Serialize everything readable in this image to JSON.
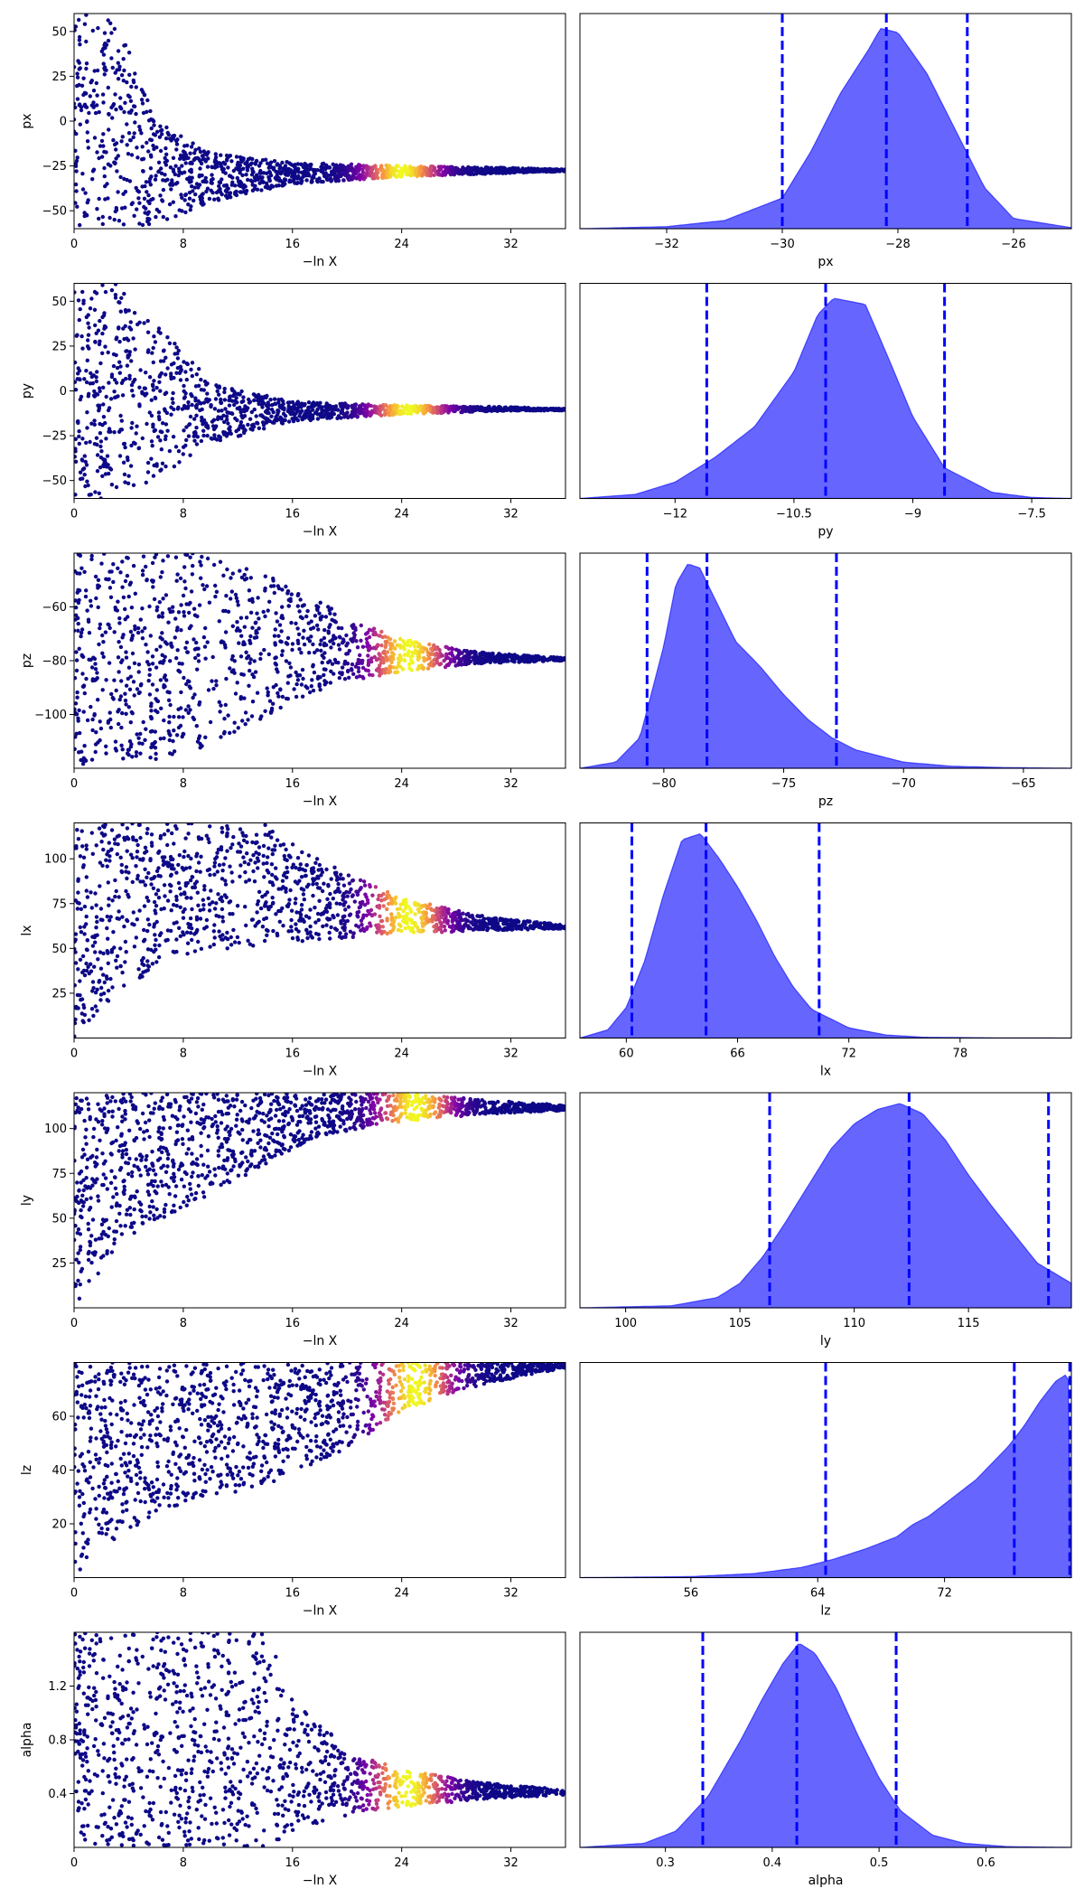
{
  "chart_data": [
    {
      "type": "scatter",
      "param": "px",
      "xlabel": "−ln X",
      "ylabel": "px",
      "xlim": [
        0,
        36
      ],
      "ylim": [
        -60,
        60
      ],
      "xticks": [
        0,
        8,
        16,
        24,
        32
      ],
      "yticks": [
        -50,
        -25,
        0,
        25,
        50
      ],
      "envelope": {
        "x": [
          0,
          3,
          6,
          10,
          16,
          24,
          32,
          36
        ],
        "upper": [
          60,
          60,
          0,
          -18,
          -23,
          -25,
          -26,
          -27
        ],
        "lower": [
          -60,
          -60,
          -58,
          -45,
          -35,
          -31,
          -29,
          -28
        ]
      },
      "colormap": "plasma",
      "color_peak_x": 24
    },
    {
      "type": "area",
      "param": "px",
      "xlabel": "px",
      "xlim": [
        -33.5,
        -25
      ],
      "xticks": [
        -32,
        -30,
        -28,
        -26
      ],
      "density": {
        "x": [
          -33.5,
          -32,
          -31,
          -30,
          -29.5,
          -29,
          -28.5,
          -28.3,
          -28,
          -27.5,
          -27,
          -26.5,
          -26,
          -25
        ],
        "y": [
          0,
          0.01,
          0.04,
          0.15,
          0.38,
          0.66,
          0.88,
          0.98,
          0.96,
          0.76,
          0.48,
          0.2,
          0.05,
          0.005
        ]
      },
      "quantiles": [
        -30.0,
        -28.2,
        -26.8
      ],
      "fill": "#0000ff",
      "line": "#0000ff"
    },
    {
      "type": "scatter",
      "param": "py",
      "xlabel": "−ln X",
      "ylabel": "py",
      "xlim": [
        0,
        36
      ],
      "ylim": [
        -60,
        60
      ],
      "xticks": [
        0,
        8,
        16,
        24,
        32
      ],
      "yticks": [
        -50,
        -25,
        0,
        25,
        50
      ],
      "envelope": {
        "x": [
          0,
          3,
          6,
          10,
          16,
          24,
          32,
          36
        ],
        "upper": [
          60,
          60,
          40,
          5,
          -6,
          -8,
          -9,
          -10
        ],
        "lower": [
          -60,
          -60,
          -50,
          -30,
          -17,
          -13,
          -11,
          -11
        ]
      },
      "colormap": "plasma",
      "color_peak_x": 24.5
    },
    {
      "type": "area",
      "param": "py",
      "xlabel": "py",
      "xlim": [
        -13.2,
        -7
      ],
      "xticks": [
        -12.0,
        -10.5,
        -9.0,
        -7.5
      ],
      "density": {
        "x": [
          -13.2,
          -12.5,
          -12,
          -11.5,
          -11,
          -10.5,
          -10.2,
          -10,
          -9.6,
          -9.3,
          -9,
          -8.6,
          -8,
          -7.5,
          -7
        ],
        "y": [
          0,
          0.02,
          0.08,
          0.2,
          0.35,
          0.62,
          0.9,
          0.98,
          0.95,
          0.68,
          0.4,
          0.15,
          0.03,
          0.005,
          0
        ]
      },
      "quantiles": [
        -11.6,
        -10.1,
        -8.6
      ],
      "fill": "#0000ff",
      "line": "#0000ff"
    },
    {
      "type": "scatter",
      "param": "pz",
      "xlabel": "−ln X",
      "ylabel": "pz",
      "xlim": [
        0,
        36
      ],
      "ylim": [
        -120,
        -40
      ],
      "xticks": [
        0,
        8,
        16,
        24,
        32
      ],
      "yticks": [
        -100,
        -80,
        -60
      ],
      "envelope": {
        "x": [
          0,
          4,
          10,
          16,
          20,
          24,
          30,
          36
        ],
        "upper": [
          -40,
          -40,
          -40,
          -52,
          -64,
          -72,
          -77,
          -79
        ],
        "lower": [
          -120,
          -120,
          -112,
          -95,
          -88,
          -84,
          -81,
          -80
        ]
      },
      "colormap": "plasma",
      "color_peak_x": 24.5
    },
    {
      "type": "area",
      "param": "pz",
      "xlabel": "pz",
      "xlim": [
        -83.5,
        -63
      ],
      "xticks": [
        -80,
        -75,
        -70,
        -65
      ],
      "density": {
        "x": [
          -83.5,
          -82,
          -81,
          -80,
          -79.5,
          -79,
          -78.5,
          -78,
          -77,
          -76,
          -75,
          -74,
          -73,
          -72,
          -70,
          -68,
          -66,
          -63
        ],
        "y": [
          0,
          0.03,
          0.15,
          0.6,
          0.9,
          1.0,
          0.98,
          0.86,
          0.62,
          0.5,
          0.36,
          0.24,
          0.15,
          0.09,
          0.03,
          0.01,
          0.004,
          0
        ]
      },
      "quantiles": [
        -80.7,
        -78.2,
        -72.8
      ],
      "fill": "#0000ff",
      "line": "#0000ff"
    },
    {
      "type": "scatter",
      "param": "lx",
      "xlabel": "−ln X",
      "ylabel": "lx",
      "xlim": [
        0,
        36
      ],
      "ylim": [
        0,
        120
      ],
      "xticks": [
        0,
        8,
        16,
        24,
        32
      ],
      "yticks": [
        25,
        50,
        75,
        100
      ],
      "envelope": {
        "x": [
          0,
          4,
          8,
          14,
          20,
          24,
          30,
          36
        ],
        "upper": [
          120,
          120,
          120,
          120,
          92,
          78,
          68,
          63
        ],
        "lower": [
          0,
          30,
          45,
          52,
          56,
          58,
          60,
          61
        ]
      },
      "colormap": "plasma",
      "color_peak_x": 24.5
    },
    {
      "type": "area",
      "param": "lx",
      "xlabel": "lx",
      "xlim": [
        57.5,
        84
      ],
      "xticks": [
        60,
        66,
        72,
        78
      ],
      "density": {
        "x": [
          57.5,
          59,
          60,
          61,
          62,
          63,
          64,
          65,
          66,
          67,
          68,
          69,
          70,
          72,
          74,
          76,
          80,
          84
        ],
        "y": [
          0,
          0.04,
          0.15,
          0.38,
          0.7,
          0.97,
          1.0,
          0.88,
          0.74,
          0.58,
          0.4,
          0.25,
          0.14,
          0.05,
          0.015,
          0.004,
          0.001,
          0
        ]
      },
      "quantiles": [
        60.3,
        64.3,
        70.4
      ],
      "fill": "#0000ff",
      "line": "#0000ff"
    },
    {
      "type": "scatter",
      "param": "ly",
      "xlabel": "−ln X",
      "ylabel": "ly",
      "xlim": [
        0,
        36
      ],
      "ylim": [
        0,
        120
      ],
      "xticks": [
        0,
        8,
        16,
        24,
        32
      ],
      "yticks": [
        25,
        50,
        75,
        100
      ],
      "envelope": {
        "x": [
          0,
          4,
          8,
          14,
          18,
          24,
          30,
          36
        ],
        "upper": [
          120,
          120,
          120,
          120,
          120,
          120,
          116,
          113
        ],
        "lower": [
          0,
          40,
          55,
          80,
          96,
          104,
          108,
          110
        ]
      },
      "colormap": "plasma",
      "color_peak_x": 25
    },
    {
      "type": "area",
      "param": "ly",
      "xlabel": "ly",
      "xlim": [
        98,
        119.5
      ],
      "xticks": [
        100,
        105,
        110,
        115
      ],
      "density": {
        "x": [
          98,
          102,
          104,
          105,
          106,
          107,
          108,
          109,
          110,
          111,
          112,
          113,
          114,
          115,
          116,
          117,
          118,
          119.5
        ],
        "y": [
          0,
          0.01,
          0.05,
          0.12,
          0.25,
          0.42,
          0.6,
          0.78,
          0.9,
          0.97,
          1.0,
          0.95,
          0.82,
          0.65,
          0.5,
          0.36,
          0.22,
          0.12
        ]
      },
      "quantiles": [
        106.3,
        112.4,
        118.5
      ],
      "fill": "#0000ff",
      "line": "#0000ff"
    },
    {
      "type": "scatter",
      "param": "lz",
      "xlabel": "−ln X",
      "ylabel": "lz",
      "xlim": [
        0,
        36
      ],
      "ylim": [
        0,
        80
      ],
      "xticks": [
        0,
        8,
        16,
        24,
        32
      ],
      "yticks": [
        20,
        40,
        60
      ],
      "envelope": {
        "x": [
          0,
          4,
          8,
          14,
          20,
          24,
          30,
          36
        ],
        "upper": [
          80,
          80,
          80,
          80,
          80,
          80,
          80,
          80
        ],
        "lower": [
          0,
          18,
          28,
          34,
          48,
          62,
          72,
          78
        ]
      },
      "colormap": "plasma",
      "color_peak_x": 25
    },
    {
      "type": "area",
      "param": "lz",
      "xlabel": "lz",
      "xlim": [
        49,
        80
      ],
      "xticks": [
        56,
        64,
        72
      ],
      "density": {
        "x": [
          49,
          56,
          60,
          63,
          65,
          67,
          69,
          70,
          71,
          72,
          73,
          74,
          75,
          76,
          77,
          78,
          79,
          79.8,
          80
        ],
        "y": [
          0,
          0.005,
          0.02,
          0.05,
          0.09,
          0.14,
          0.2,
          0.26,
          0.3,
          0.36,
          0.42,
          0.48,
          0.56,
          0.64,
          0.74,
          0.86,
          0.96,
          1.0,
          0.0
        ]
      },
      "quantiles": [
        64.5,
        76.4,
        79.9
      ],
      "fill": "#0000ff",
      "line": "#0000ff"
    },
    {
      "type": "scatter",
      "param": "alpha",
      "xlabel": "−ln X",
      "ylabel": "alpha",
      "xlim": [
        0,
        36
      ],
      "ylim": [
        0,
        1.6
      ],
      "xticks": [
        0,
        8,
        16,
        24,
        32
      ],
      "yticks": [
        0.4,
        0.8,
        1.2
      ],
      "envelope": {
        "x": [
          0,
          4,
          8,
          14,
          16,
          20,
          24,
          30,
          36
        ],
        "upper": [
          1.6,
          1.6,
          1.6,
          1.6,
          1.15,
          0.72,
          0.58,
          0.48,
          0.43
        ],
        "lower": [
          0,
          0,
          0,
          0,
          0.12,
          0.24,
          0.3,
          0.36,
          0.39
        ]
      },
      "colormap": "plasma",
      "color_peak_x": 24.5
    },
    {
      "type": "area",
      "param": "alpha",
      "xlabel": "alpha",
      "xlim": [
        0.22,
        0.68
      ],
      "xticks": [
        0.3,
        0.4,
        0.5,
        0.6
      ],
      "density": {
        "x": [
          0.22,
          0.28,
          0.31,
          0.34,
          0.37,
          0.39,
          0.41,
          0.425,
          0.44,
          0.46,
          0.48,
          0.5,
          0.52,
          0.55,
          0.58,
          0.62,
          0.68
        ],
        "y": [
          0,
          0.02,
          0.08,
          0.25,
          0.52,
          0.72,
          0.9,
          1.0,
          0.95,
          0.78,
          0.55,
          0.34,
          0.18,
          0.06,
          0.02,
          0.004,
          0
        ]
      },
      "quantiles": [
        0.335,
        0.423,
        0.516
      ],
      "fill": "#0000ff",
      "line": "#0000ff"
    }
  ]
}
